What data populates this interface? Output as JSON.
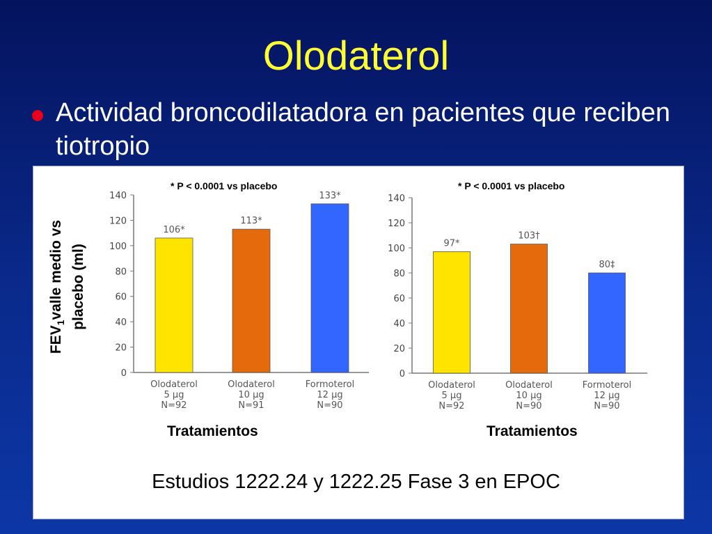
{
  "slide": {
    "title": "Olodaterol",
    "bullet": "Actividad broncodilatadora en pacientes que reciben tiotropio",
    "y_axis_title_line1_main": "FEV",
    "y_axis_title_line1_sub": "1",
    "y_axis_title_line1_rest": "valle medio vs",
    "y_axis_title_line2": "placebo (ml)",
    "footer": "Estudios 1222.24 y 1222.25 Fase 3 en EPOC"
  },
  "colors": {
    "background": "#0a2a8c",
    "title": "#ffff33",
    "bullet": "#e8001c",
    "bar_yellow": "#ffe400",
    "bar_orange": "#e46a0c",
    "bar_blue": "#3366ff"
  },
  "chart_data": [
    {
      "type": "bar",
      "annotation": "* P < 0.0001 vs placebo",
      "xlabel": "Tratamientos",
      "ylim": [
        0,
        140
      ],
      "yticks": [
        0,
        20,
        40,
        60,
        80,
        100,
        120,
        140
      ],
      "categories": [
        [
          "Olodaterol",
          "5 µg",
          "N=92"
        ],
        [
          "Olodaterol",
          "10 µg",
          "N=91"
        ],
        [
          "Formoterol",
          "12 µg",
          "N=90"
        ]
      ],
      "values": [
        106,
        113,
        133
      ],
      "labels": [
        "106*",
        "113*",
        "133*"
      ],
      "bar_colors": [
        "#ffe400",
        "#e46a0c",
        "#3366ff"
      ]
    },
    {
      "type": "bar",
      "annotation": "* P < 0.0001 vs placebo",
      "xlabel": "Tratamientos",
      "ylim": [
        0,
        140
      ],
      "yticks": [
        0,
        20,
        40,
        60,
        80,
        100,
        120,
        140
      ],
      "categories": [
        [
          "Olodaterol",
          "5 µg",
          "N=92"
        ],
        [
          "Olodaterol",
          "10 µg",
          "N=90"
        ],
        [
          "Formoterol",
          "12 µg",
          "N=90"
        ]
      ],
      "values": [
        97,
        103,
        80
      ],
      "labels": [
        "97*",
        "103†",
        "80‡"
      ],
      "bar_colors": [
        "#ffe400",
        "#e46a0c",
        "#3366ff"
      ]
    }
  ]
}
